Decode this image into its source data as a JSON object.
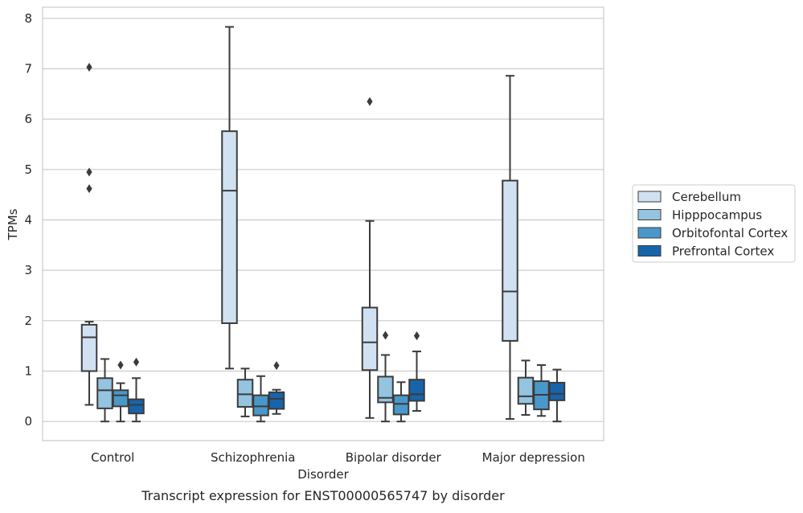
{
  "chart_data": {
    "type": "boxplot",
    "title": "Transcript expression for ENST00000565747 by disorder",
    "xlabel": "Disorder",
    "ylabel": "TPMs",
    "ylim": [
      -0.38,
      8.22
    ],
    "yticks": [
      0,
      1,
      2,
      3,
      4,
      5,
      6,
      7,
      8
    ],
    "grid": true,
    "legend_position": "right",
    "categories": [
      "Control",
      "Schizophrenia",
      "Bipolar disorder",
      "Major depression"
    ],
    "series": [
      {
        "name": "Cerebellum",
        "color": "#d0e1f2",
        "boxes": [
          {
            "whislo": 0.33,
            "q1": 1.0,
            "med": 1.67,
            "q3": 1.92,
            "whishi": 1.98,
            "fliers": [
              4.62,
              4.95,
              7.03
            ]
          },
          {
            "whislo": 1.05,
            "q1": 1.95,
            "med": 4.58,
            "q3": 5.76,
            "whishi": 7.83,
            "fliers": []
          },
          {
            "whislo": 0.07,
            "q1": 1.02,
            "med": 1.57,
            "q3": 2.26,
            "whishi": 3.98,
            "fliers": [
              6.35
            ]
          },
          {
            "whislo": 0.05,
            "q1": 1.6,
            "med": 2.58,
            "q3": 4.78,
            "whishi": 6.86,
            "fliers": []
          }
        ]
      },
      {
        "name": "Hipppocampus",
        "color": "#94c4df",
        "boxes": [
          {
            "whislo": 0.0,
            "q1": 0.26,
            "med": 0.62,
            "q3": 0.86,
            "whishi": 1.24,
            "fliers": []
          },
          {
            "whislo": 0.1,
            "q1": 0.29,
            "med": 0.54,
            "q3": 0.83,
            "whishi": 1.05,
            "fliers": []
          },
          {
            "whislo": 0.0,
            "q1": 0.38,
            "med": 0.47,
            "q3": 0.89,
            "whishi": 1.32,
            "fliers": [
              1.71
            ]
          },
          {
            "whislo": 0.13,
            "q1": 0.35,
            "med": 0.5,
            "q3": 0.87,
            "whishi": 1.21,
            "fliers": []
          }
        ]
      },
      {
        "name": "Orbitofontal Cortex",
        "color": "#4a98c9",
        "boxes": [
          {
            "whislo": 0.0,
            "q1": 0.3,
            "med": 0.52,
            "q3": 0.62,
            "whishi": 0.76,
            "fliers": [
              1.12
            ]
          },
          {
            "whislo": 0.0,
            "q1": 0.12,
            "med": 0.3,
            "q3": 0.52,
            "whishi": 0.9,
            "fliers": []
          },
          {
            "whislo": 0.0,
            "q1": 0.14,
            "med": 0.35,
            "q3": 0.52,
            "whishi": 0.78,
            "fliers": []
          },
          {
            "whislo": 0.11,
            "q1": 0.24,
            "med": 0.53,
            "q3": 0.8,
            "whishi": 1.12,
            "fliers": []
          }
        ]
      },
      {
        "name": "Prefrontal Cortex",
        "color": "#1764ab",
        "boxes": [
          {
            "whislo": 0.0,
            "q1": 0.16,
            "med": 0.33,
            "q3": 0.44,
            "whishi": 0.86,
            "fliers": [
              1.18
            ]
          },
          {
            "whislo": 0.15,
            "q1": 0.25,
            "med": 0.45,
            "q3": 0.58,
            "whishi": 0.63,
            "fliers": [
              1.11
            ]
          },
          {
            "whislo": 0.21,
            "q1": 0.41,
            "med": 0.54,
            "q3": 0.83,
            "whishi": 1.39,
            "fliers": [
              1.7
            ]
          },
          {
            "whislo": 0.0,
            "q1": 0.42,
            "med": 0.55,
            "q3": 0.77,
            "whishi": 1.03,
            "fliers": []
          }
        ]
      }
    ]
  }
}
